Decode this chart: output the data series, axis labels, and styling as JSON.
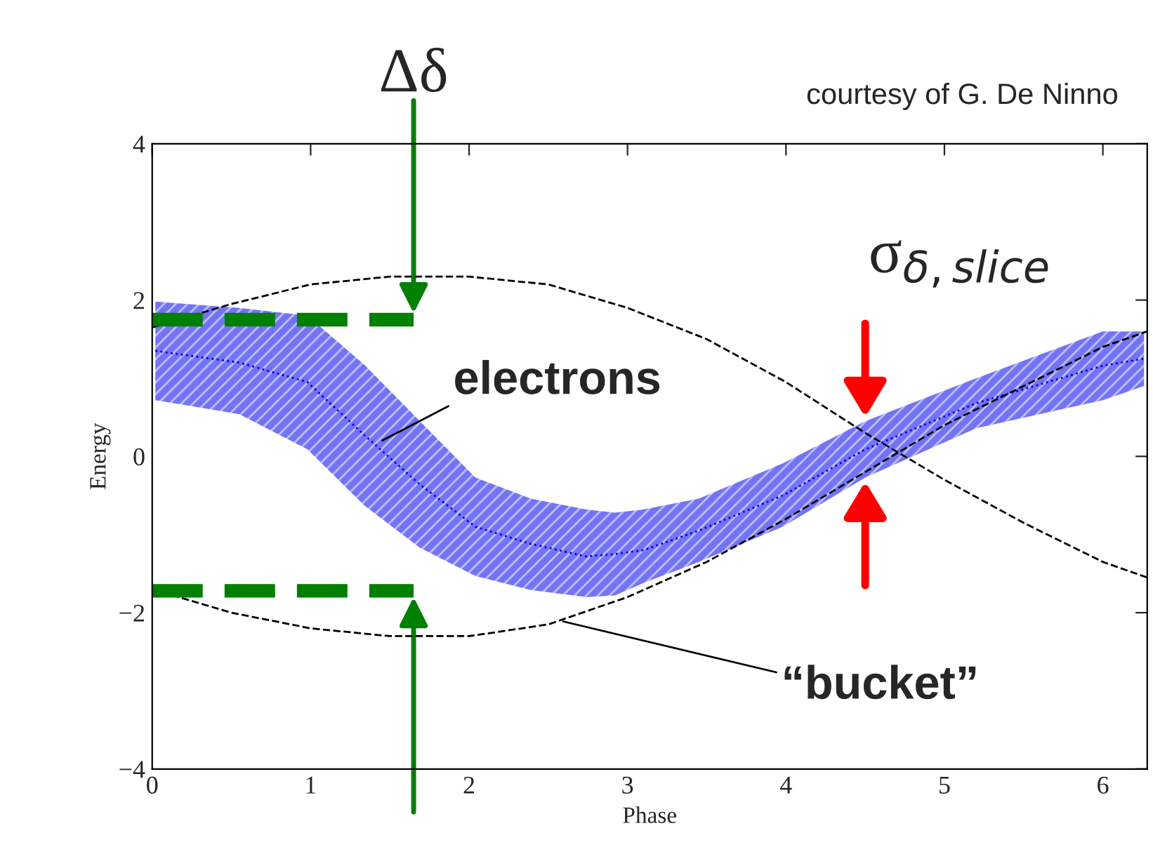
{
  "chart_data": {
    "type": "line",
    "xlabel": "Phase",
    "ylabel": "Energy",
    "xlim": [
      0,
      6.28
    ],
    "ylim": [
      -4,
      4
    ],
    "xticks": [
      0,
      1,
      2,
      3,
      4,
      5,
      6
    ],
    "yticks": [
      {
        "value": -4,
        "label": "−4"
      },
      {
        "value": -2,
        "label": "−2"
      },
      0,
      2,
      4
    ],
    "grid": false,
    "legend": false,
    "series": [
      {
        "color": "#0000ee",
        "line_style": "dotted",
        "x": [
          0.02,
          0.55,
          0.98,
          1.34,
          1.69,
          2.04,
          2.39,
          2.74,
          2.92,
          3.1,
          3.45,
          3.98,
          4.5,
          5.2,
          6.0,
          6.26
        ],
        "values": [
          1.35,
          1.2,
          0.95,
          0.27,
          -0.36,
          -0.9,
          -1.12,
          -1.28,
          -1.25,
          -1.2,
          -0.95,
          -0.5,
          0.09,
          0.68,
          1.16,
          1.25
        ],
        "upper": [
          1.98,
          1.9,
          1.8,
          1.17,
          0.45,
          -0.27,
          -0.54,
          -0.68,
          -0.72,
          -0.68,
          -0.54,
          -0.09,
          0.45,
          1.0,
          1.6,
          1.6
        ],
        "lower": [
          0.72,
          0.54,
          0.09,
          -0.63,
          -1.17,
          -1.53,
          -1.71,
          -1.8,
          -1.78,
          -1.62,
          -1.35,
          -0.9,
          -0.27,
          0.36,
          0.72,
          0.9
        ]
      },
      {
        "color": "#000000",
        "line_style": "dashed",
        "x": [
          0,
          0.5,
          1,
          1.5,
          2,
          2.5,
          3,
          3.5,
          4,
          4.5,
          5,
          5.5,
          6,
          6.28
        ],
        "values": [
          1.65,
          1.95,
          2.2,
          2.3,
          2.3,
          2.2,
          1.9,
          1.5,
          0.95,
          0.3,
          -0.3,
          -0.85,
          -1.35,
          -1.55
        ]
      },
      {
        "color": "#000000",
        "line_style": "dashed",
        "x": [
          0,
          0.5,
          1,
          1.5,
          2,
          2.5,
          3,
          3.5,
          4,
          4.5,
          5,
          5.5,
          6,
          6.28
        ],
        "values": [
          -1.7,
          -2.0,
          -2.2,
          -2.3,
          -2.3,
          -2.15,
          -1.8,
          -1.35,
          -0.8,
          -0.2,
          0.4,
          0.9,
          1.4,
          1.6
        ]
      },
      {
        "color": "#008000",
        "line_style": "dashed",
        "x": [
          0,
          1.65
        ],
        "values": [
          1.75,
          1.75
        ]
      },
      {
        "color": "#008000",
        "line_style": "dashed",
        "x": [
          0,
          1.65
        ],
        "values": [
          -1.72,
          -1.72
        ]
      }
    ],
    "annotations": [
      {
        "text": "Δδ",
        "x": 1.65,
        "y": 1.75
      },
      {
        "text": "σ$_{δ,slice}$",
        "x": 4.5,
        "y": 0.1
      },
      {
        "text": "electrons",
        "x": 1.43,
        "y": 0.18
      },
      {
        "text": "“bucket”",
        "x": 2.57,
        "y": -2.1
      },
      "courtesy of G. De Ninno"
    ]
  }
}
